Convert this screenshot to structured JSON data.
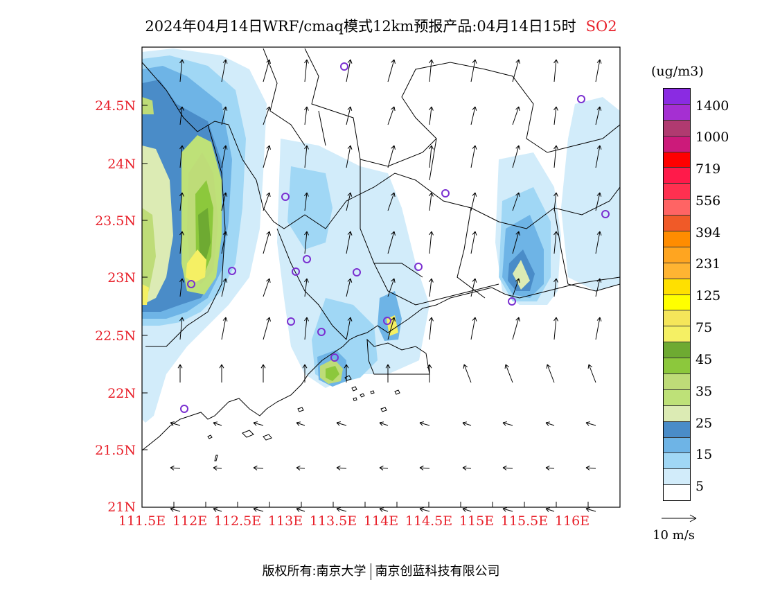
{
  "title": {
    "main": "2024年04月14日WRF/cmaq模式12km预报产品:04月14日15时",
    "species": "SO2"
  },
  "axes": {
    "lat_labels": [
      "24.5N",
      "24N",
      "23.5N",
      "23N",
      "22.5N",
      "22N",
      "21.5N",
      "21N"
    ],
    "lon_labels": [
      "111.5E",
      "112E",
      "112.5E",
      "113E",
      "113.5E",
      "114E",
      "114.5E",
      "115E",
      "115.5E",
      "116E"
    ],
    "lat_range": [
      21,
      25
    ],
    "lon_range": [
      111.5,
      116.5
    ]
  },
  "colorbar": {
    "unit": "(ug/m3)",
    "labels": [
      "1400",
      "1000",
      "719",
      "556",
      "394",
      "231",
      "125",
      "75",
      "45",
      "35",
      "25",
      "15",
      "5"
    ],
    "colors": [
      "#8a2be2",
      "#a52fd2",
      "#b03a70",
      "#cc1a7a",
      "#ff0000",
      "#ff1a4a",
      "#ff3050",
      "#ff6464",
      "#f05a28",
      "#ff8c00",
      "#ffa520",
      "#ffb432",
      "#ffe000",
      "#ffff00",
      "#f5e65a",
      "#f5f064",
      "#6eaa32",
      "#8cc83c",
      "#bedc78",
      "#bee178",
      "#dcebb4",
      "#4a8cc8",
      "#6eb4e6",
      "#a0d7f5",
      "#d2ecfa",
      "#ffffff"
    ]
  },
  "wind_legend": {
    "label": "10 m/s"
  },
  "footer": {
    "left": "版权所有:南京大学",
    "right": "南京创蓝科技有限公司"
  },
  "colors": {
    "label_red": "#e8202a",
    "station_marker": "#7a2fd0"
  }
}
